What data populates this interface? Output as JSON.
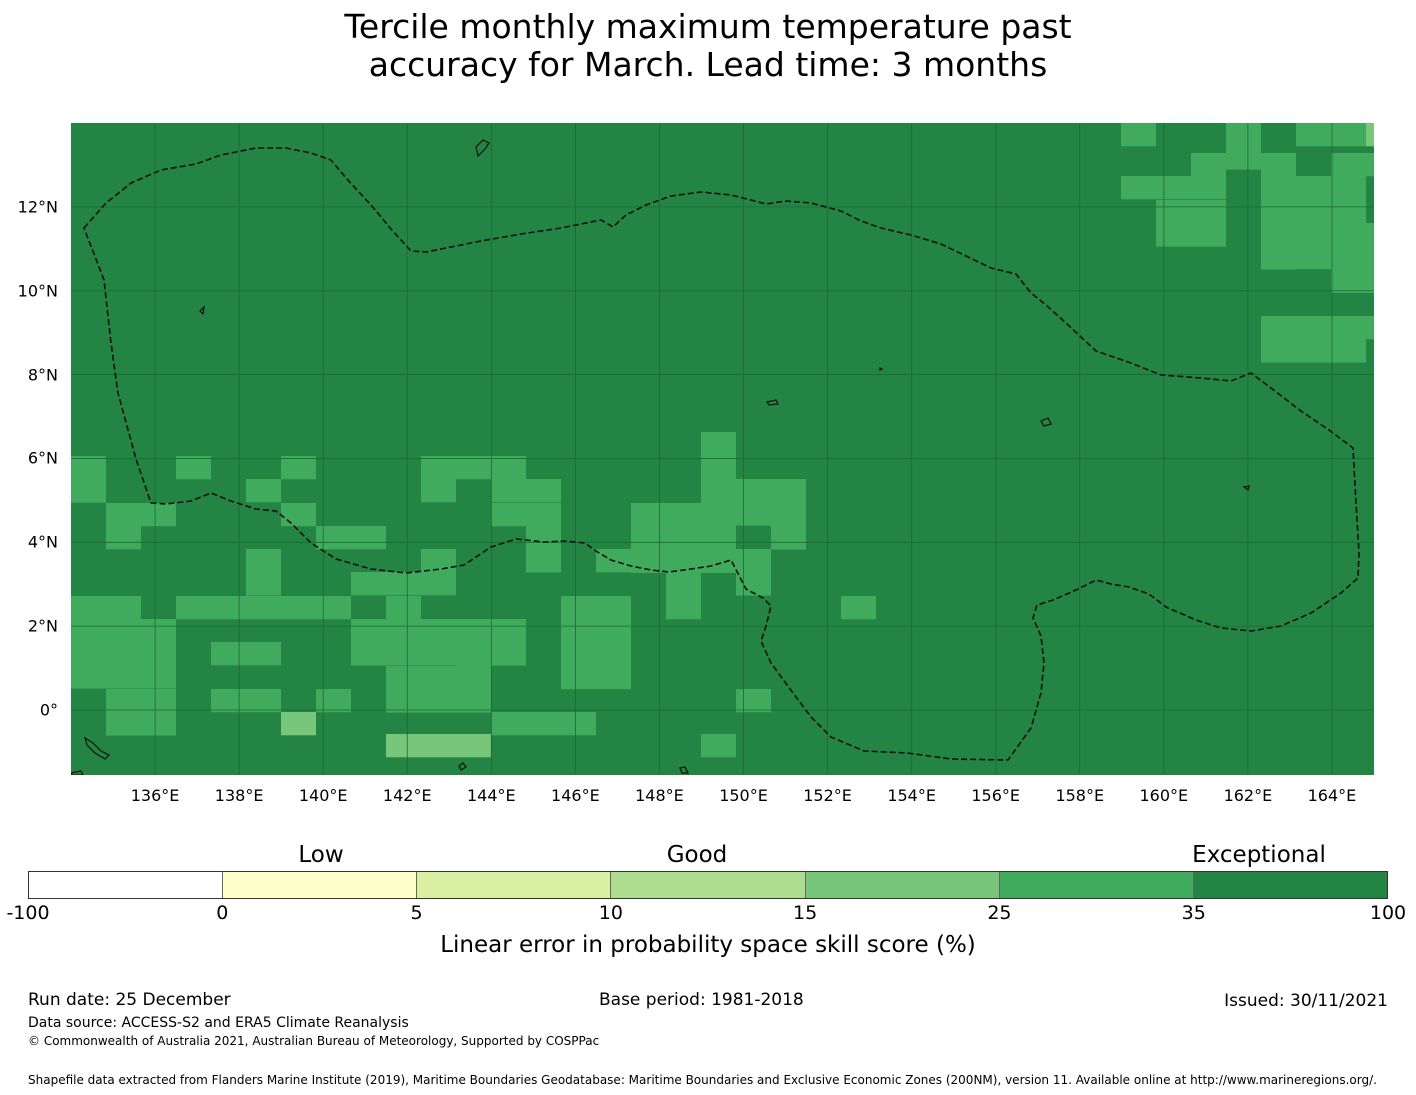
{
  "title": {
    "line1": "Tercile monthly maximum temperature past",
    "line2": "accuracy for March. Lead time: 3 months"
  },
  "map": {
    "lat_range": [
      -1.55,
      14.0
    ],
    "lon_range": [
      134.0,
      165.0
    ],
    "lat_ticks": [
      "12°N",
      "10°N",
      "8°N",
      "6°N",
      "4°N",
      "2°N",
      "0°"
    ],
    "lon_ticks": [
      "136°E",
      "138°E",
      "140°E",
      "142°E",
      "144°E",
      "146°E",
      "148°E",
      "150°E",
      "152°E",
      "154°E",
      "156°E",
      "158°E",
      "160°E",
      "162°E",
      "164°E"
    ],
    "grid": true,
    "colors": {
      "exceptional": "#238443",
      "good_high": "#41ab5d",
      "good_mid": "#78c679",
      "ocean_default": "#238443"
    },
    "boundary": "dashed EEZ outline"
  },
  "colorbar": {
    "categories": [
      "Low",
      "Good",
      "Exceptional"
    ],
    "ticks": [
      "-100",
      "0",
      "5",
      "10",
      "15",
      "25",
      "35",
      "100"
    ],
    "colors": [
      "#ffffff",
      "#ffffcc",
      "#d9f0a3",
      "#addd8e",
      "#78c679",
      "#41ab5d",
      "#238443"
    ],
    "label": "Linear error in probability space skill score (%)"
  },
  "footer": {
    "run_date": "Run date: 25 December",
    "base_period": "Base period: 1981-2018",
    "issued": "Issued: 30/11/2021",
    "data_source": "Data source: ACCESS-S2 and ERA5 Climate Reanalysis",
    "copyright": "© Commonwealth of Australia 2021, Australian Bureau of Meteorology, Supported by COSPPac",
    "shapefile": "Shapefile data extracted from Flanders Marine Institute (2019), Maritime Boundaries Geodatabase: Maritime Boundaries and Exclusive Economic Zones (200NM), version 11. Available online at http://www.marineregions.org/."
  }
}
